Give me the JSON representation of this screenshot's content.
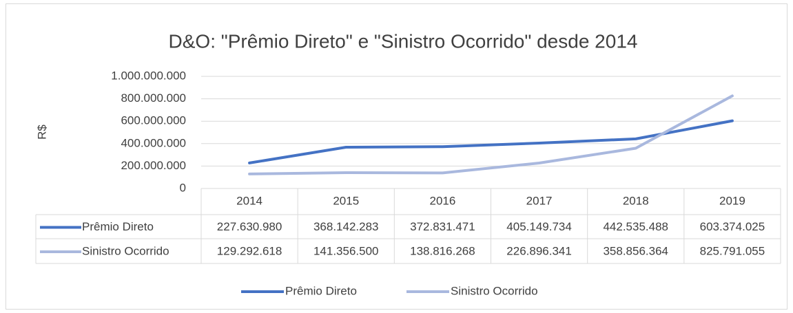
{
  "chart_data": {
    "type": "line",
    "title": "D&O: \"Prêmio Direto\" e \"Sinistro Ocorrido\" desde 2014",
    "y_label": "R$",
    "categories": [
      "2014",
      "2015",
      "2016",
      "2017",
      "2018",
      "2019"
    ],
    "series": [
      {
        "name": "Prêmio Direto",
        "color": "#4472c4",
        "values": [
          227630980,
          368142283,
          372831471,
          405149734,
          442535488,
          603374025
        ],
        "value_labels": [
          "227.630.980",
          "368.142.283",
          "372.831.471",
          "405.149.734",
          "442.535.488",
          "603.374.025"
        ]
      },
      {
        "name": "Sinistro Ocorrido",
        "color": "#a9b8de",
        "values": [
          129292618,
          141356500,
          138816268,
          226896341,
          358856364,
          825791055
        ],
        "value_labels": [
          "129.292.618",
          "141.356.500",
          "138.816.268",
          "226.896.341",
          "358.856.364",
          "825.791.055"
        ]
      }
    ],
    "ylim": [
      0,
      1000000000
    ],
    "yticks": [
      0,
      {
        "value": 200000000,
        "label": "200.000.000"
      },
      {
        "value": 400000000,
        "label": "400.000.000"
      },
      {
        "value": 600000000,
        "label": "600.000.000"
      },
      {
        "value": 800000000,
        "label": "800.000.000"
      },
      {
        "value": 1000000000,
        "label": "1.000.000.000"
      }
    ],
    "grid": true,
    "legend": "bottom"
  }
}
